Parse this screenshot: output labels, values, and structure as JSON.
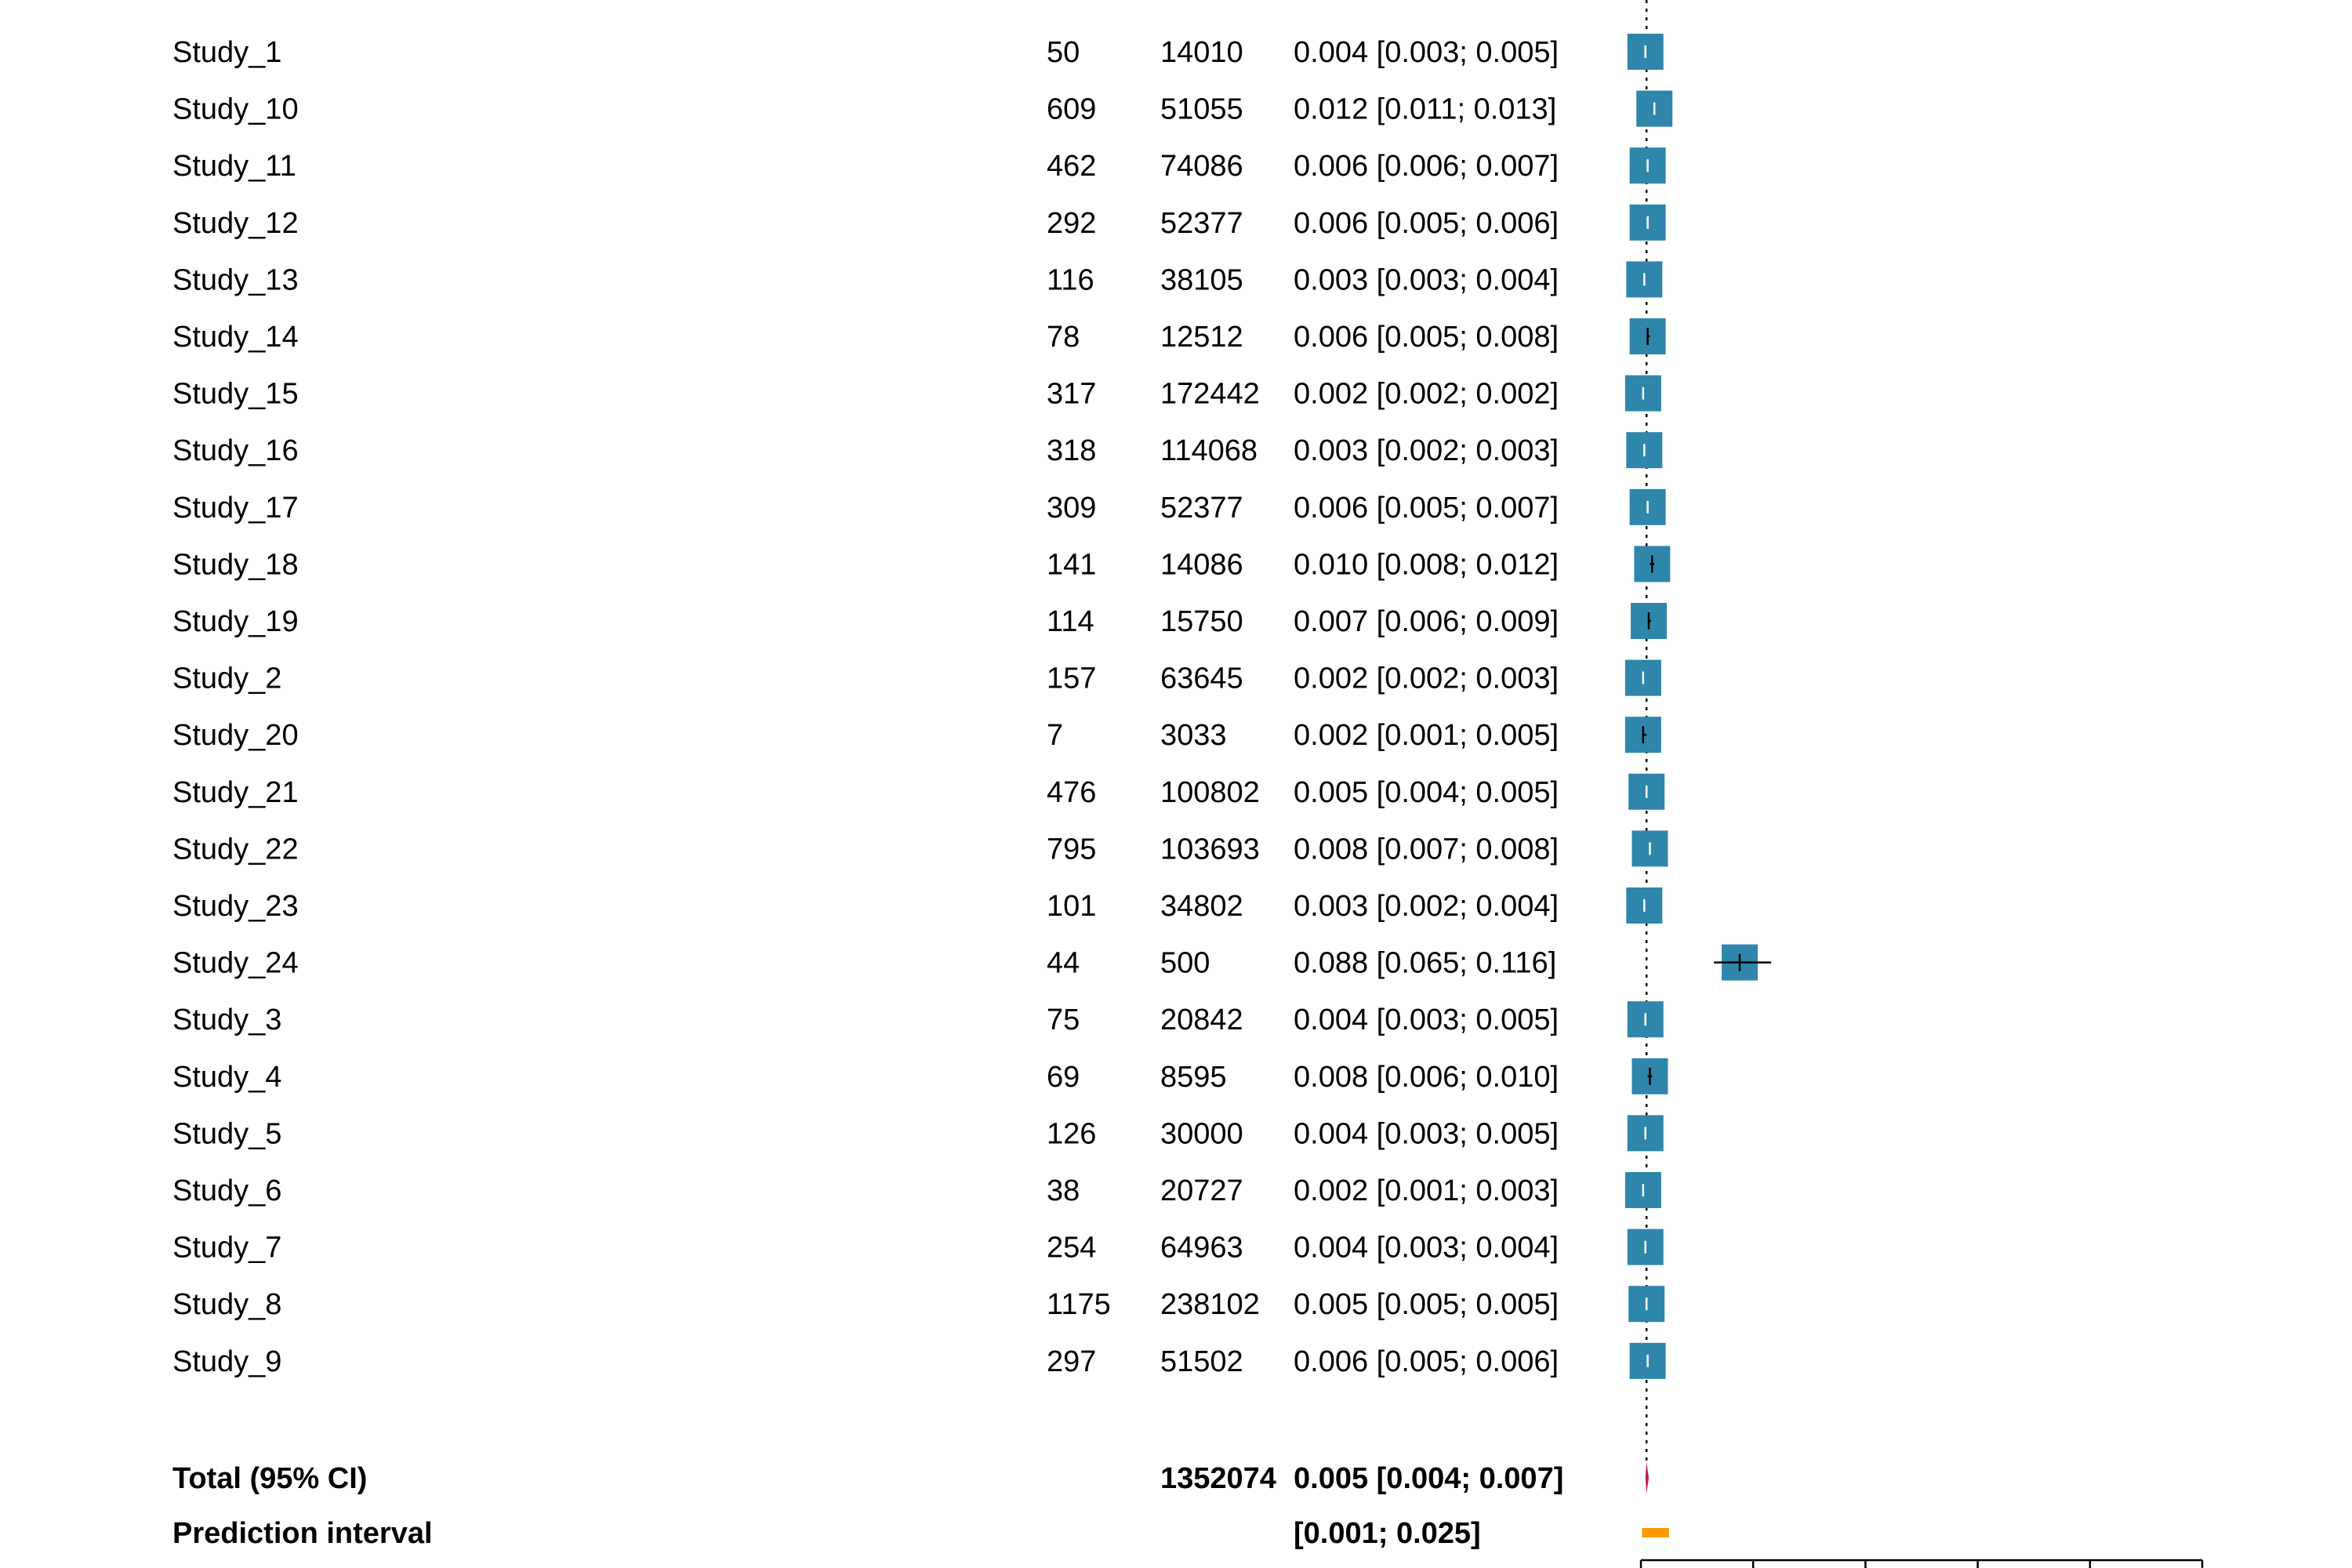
{
  "chart_data": {
    "type": "forest",
    "colors": {
      "study_box": "#2e86ab",
      "pooled_diamond": "#c2185b",
      "prediction_interval": "#ff9800",
      "text": "#000000"
    },
    "reference_line": "dotted vertical line at pooled estimate",
    "xlim": [
      0,
      0.5
    ],
    "x_ticks": [
      0,
      0.1,
      0.2,
      0.3,
      0.4,
      0.5
    ],
    "studies": [
      {
        "name": "Study_1",
        "events": "50",
        "total": "14010",
        "ci_text": "0.004 [0.003; 0.005]",
        "est": 0.004,
        "lo": 0.003,
        "hi": 0.005
      },
      {
        "name": "Study_10",
        "events": "609",
        "total": "51055",
        "ci_text": "0.012 [0.011; 0.013]",
        "est": 0.012,
        "lo": 0.011,
        "hi": 0.013
      },
      {
        "name": "Study_11",
        "events": "462",
        "total": "74086",
        "ci_text": "0.006 [0.006; 0.007]",
        "est": 0.006,
        "lo": 0.006,
        "hi": 0.007
      },
      {
        "name": "Study_12",
        "events": "292",
        "total": "52377",
        "ci_text": "0.006 [0.005; 0.006]",
        "est": 0.006,
        "lo": 0.005,
        "hi": 0.006
      },
      {
        "name": "Study_13",
        "events": "116",
        "total": "38105",
        "ci_text": "0.003 [0.003; 0.004]",
        "est": 0.003,
        "lo": 0.003,
        "hi": 0.004
      },
      {
        "name": "Study_14",
        "events": "78",
        "total": "12512",
        "ci_text": "0.006 [0.005; 0.008]",
        "est": 0.006,
        "lo": 0.005,
        "hi": 0.008
      },
      {
        "name": "Study_15",
        "events": "317",
        "total": "172442",
        "ci_text": "0.002 [0.002; 0.002]",
        "est": 0.002,
        "lo": 0.002,
        "hi": 0.002
      },
      {
        "name": "Study_16",
        "events": "318",
        "total": "114068",
        "ci_text": "0.003 [0.002; 0.003]",
        "est": 0.003,
        "lo": 0.002,
        "hi": 0.003
      },
      {
        "name": "Study_17",
        "events": "309",
        "total": "52377",
        "ci_text": "0.006 [0.005; 0.007]",
        "est": 0.006,
        "lo": 0.005,
        "hi": 0.007
      },
      {
        "name": "Study_18",
        "events": "141",
        "total": "14086",
        "ci_text": "0.010 [0.008; 0.012]",
        "est": 0.01,
        "lo": 0.008,
        "hi": 0.012
      },
      {
        "name": "Study_19",
        "events": "114",
        "total": "15750",
        "ci_text": "0.007 [0.006; 0.009]",
        "est": 0.007,
        "lo": 0.006,
        "hi": 0.009
      },
      {
        "name": "Study_2",
        "events": "157",
        "total": "63645",
        "ci_text": "0.002 [0.002; 0.003]",
        "est": 0.002,
        "lo": 0.002,
        "hi": 0.003
      },
      {
        "name": "Study_20",
        "events": "7",
        "total": "3033",
        "ci_text": "0.002 [0.001; 0.005]",
        "est": 0.002,
        "lo": 0.001,
        "hi": 0.005
      },
      {
        "name": "Study_21",
        "events": "476",
        "total": "100802",
        "ci_text": "0.005 [0.004; 0.005]",
        "est": 0.005,
        "lo": 0.004,
        "hi": 0.005
      },
      {
        "name": "Study_22",
        "events": "795",
        "total": "103693",
        "ci_text": "0.008 [0.007; 0.008]",
        "est": 0.008,
        "lo": 0.007,
        "hi": 0.008
      },
      {
        "name": "Study_23",
        "events": "101",
        "total": "34802",
        "ci_text": "0.003 [0.002; 0.004]",
        "est": 0.003,
        "lo": 0.002,
        "hi": 0.004
      },
      {
        "name": "Study_24",
        "events": "44",
        "total": "500",
        "ci_text": "0.088 [0.065; 0.116]",
        "est": 0.088,
        "lo": 0.065,
        "hi": 0.116
      },
      {
        "name": "Study_3",
        "events": "75",
        "total": "20842",
        "ci_text": "0.004 [0.003; 0.005]",
        "est": 0.004,
        "lo": 0.003,
        "hi": 0.005
      },
      {
        "name": "Study_4",
        "events": "69",
        "total": "8595",
        "ci_text": "0.008 [0.006; 0.010]",
        "est": 0.008,
        "lo": 0.006,
        "hi": 0.01
      },
      {
        "name": "Study_5",
        "events": "126",
        "total": "30000",
        "ci_text": "0.004 [0.003; 0.005]",
        "est": 0.004,
        "lo": 0.003,
        "hi": 0.005
      },
      {
        "name": "Study_6",
        "events": "38",
        "total": "20727",
        "ci_text": "0.002 [0.001; 0.003]",
        "est": 0.002,
        "lo": 0.001,
        "hi": 0.003
      },
      {
        "name": "Study_7",
        "events": "254",
        "total": "64963",
        "ci_text": "0.004 [0.003; 0.004]",
        "est": 0.004,
        "lo": 0.003,
        "hi": 0.004
      },
      {
        "name": "Study_8",
        "events": "1175",
        "total": "238102",
        "ci_text": "0.005 [0.005; 0.005]",
        "est": 0.005,
        "lo": 0.005,
        "hi": 0.005
      },
      {
        "name": "Study_9",
        "events": "297",
        "total": "51502",
        "ci_text": "0.006 [0.005; 0.006]",
        "est": 0.006,
        "lo": 0.005,
        "hi": 0.006
      }
    ],
    "total": {
      "label": "Total (95% CI)",
      "total": "1352074",
      "ci_text": "0.005 [0.004; 0.007]",
      "est": 0.005,
      "lo": 0.004,
      "hi": 0.007
    },
    "prediction": {
      "label": "Prediction interval",
      "ci_text": "[0.001; 0.025]",
      "lo": 0.001,
      "hi": 0.025
    }
  }
}
